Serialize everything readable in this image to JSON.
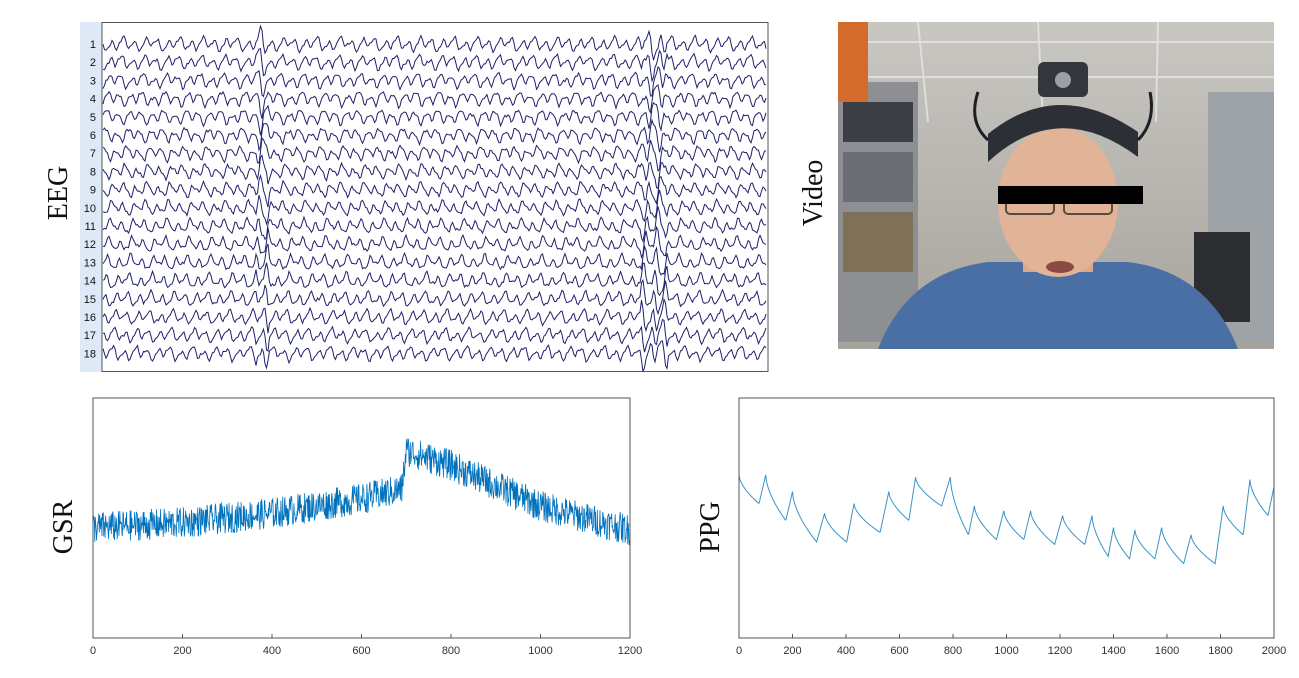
{
  "labels": {
    "eeg": "EEG",
    "video": "Video",
    "gsr": "GSR",
    "ppg": "PPG"
  },
  "colors": {
    "eeg": "#1f1f6b",
    "gsr": "#0072bd",
    "ppg": "#3a93c4",
    "eeg_label_bg": "#dde9f7"
  },
  "chart_data": [
    {
      "type": "line",
      "name": "eeg",
      "channels": [
        "1",
        "2",
        "3",
        "4",
        "5",
        "6",
        "7",
        "8",
        "9",
        "10",
        "11",
        "12",
        "13",
        "14",
        "15",
        "16",
        "17",
        "18"
      ],
      "xlim": [
        0,
        1200
      ],
      "tick_labels": [],
      "grid": false,
      "notes_visible": "18 overlapping oscillatory traces"
    },
    {
      "type": "line",
      "name": "gsr",
      "xlim": [
        0,
        1200
      ],
      "xticks": [
        0,
        200,
        400,
        600,
        800,
        1000,
        1200
      ],
      "ylim": [
        0,
        1
      ],
      "grid": false,
      "trend": {
        "x": [
          0,
          200,
          400,
          600,
          690,
          700,
          800,
          1000,
          1200
        ],
        "y": [
          0.46,
          0.48,
          0.52,
          0.58,
          0.62,
          0.78,
          0.72,
          0.55,
          0.45
        ]
      }
    },
    {
      "type": "line",
      "name": "ppg",
      "xlim": [
        0,
        2000
      ],
      "xticks": [
        0,
        200,
        400,
        600,
        800,
        1000,
        1200,
        1400,
        1600,
        1800,
        2000
      ],
      "ylim": [
        0,
        1
      ],
      "grid": false,
      "peaks": {
        "x": [
          0,
          100,
          200,
          320,
          430,
          560,
          660,
          790,
          880,
          990,
          1090,
          1210,
          1320,
          1400,
          1480,
          1580,
          1690,
          1810,
          1910,
          2000
        ],
        "y": [
          0.68,
          0.68,
          0.61,
          0.52,
          0.56,
          0.61,
          0.67,
          0.67,
          0.55,
          0.53,
          0.53,
          0.51,
          0.51,
          0.46,
          0.45,
          0.46,
          0.43,
          0.55,
          0.66,
          0.63
        ]
      }
    }
  ]
}
